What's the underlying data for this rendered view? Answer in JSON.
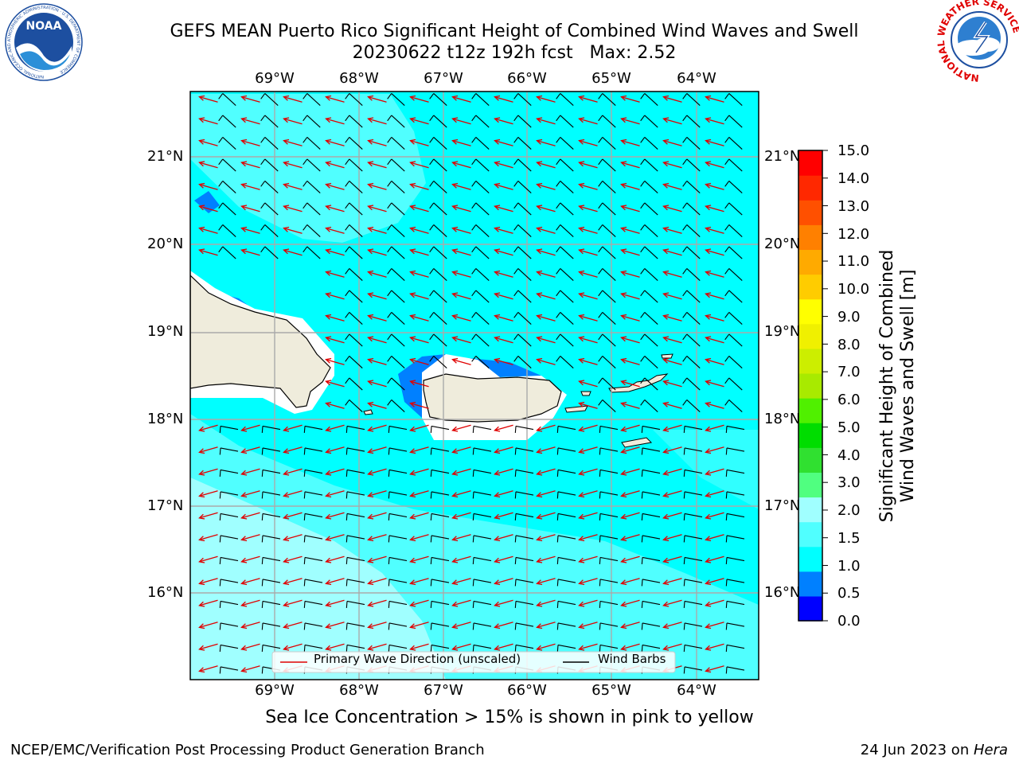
{
  "title": {
    "line1": "GEFS MEAN Puerto Rico Significant Height of Combined Wind Waves and Swell",
    "line2": "20230622 t12z 192h fcst   Max: 2.52"
  },
  "map": {
    "lon_labels": [
      "69°W",
      "68°W",
      "67°W",
      "66°W",
      "65°W",
      "64°W"
    ],
    "lat_labels": [
      "21°N",
      "20°N",
      "19°N",
      "18°N",
      "17°N",
      "16°N"
    ],
    "bg_color": "#00ffff",
    "land_color": "#efecdc"
  },
  "colorbar": {
    "label_line1": "Significant Height of Combined",
    "label_line2": "Wind Waves and Swell [m]",
    "ticks": [
      "15.0",
      "14.0",
      "13.0",
      "12.0",
      "11.0",
      "10.0",
      "9.0",
      "8.0",
      "7.0",
      "6.0",
      "5.0",
      "4.0",
      "3.0",
      "2.0",
      "1.5",
      "1.0",
      "0.5",
      "0.0"
    ],
    "colors_bottom_to_top": [
      "#0000ff",
      "#0080ff",
      "#00ffff",
      "#50ffff",
      "#a0ffff",
      "#50ff80",
      "#30e030",
      "#00dd00",
      "#50f000",
      "#a8ea00",
      "#ccee00",
      "#f0f000",
      "#ffff00",
      "#ffcc00",
      "#ffaa00",
      "#ff8000",
      "#ff5000",
      "#ff2800",
      "#ff0000"
    ]
  },
  "legend": {
    "wave_label": "Primary Wave Direction (unscaled)",
    "barb_label": "Wind Barbs"
  },
  "sea_ice_note": "Sea Ice Concentration > 15% is shown in pink to yellow",
  "footer": {
    "left": "NCEP/EMC/Verification Post Processing Product Generation Branch",
    "right_prefix": "24 Jun 2023 on ",
    "right_machine": "Hera"
  },
  "logos": {
    "left_text": "NOAA",
    "left_ring": "NATIONAL OCEANIC AND ATMOSPHERIC ADMINISTRATION · U.S. DEPARTMENT OF COMMERCE",
    "right_ring": "NATIONAL WEATHER SERVICE"
  }
}
